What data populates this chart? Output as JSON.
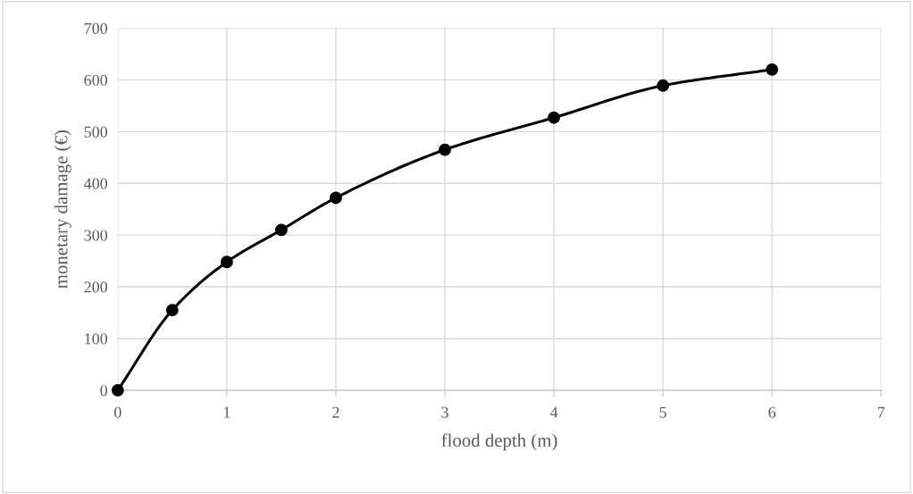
{
  "chart_data": {
    "type": "line",
    "xlabel": "flood depth (m)",
    "ylabel": "monetary damage (€)",
    "x": [
      0,
      0.5,
      1,
      1.5,
      2,
      3,
      4,
      5,
      6
    ],
    "series": [
      {
        "color": "#000000",
        "values": [
          0,
          155,
          248,
          310,
          372,
          465,
          527,
          589,
          620
        ]
      }
    ],
    "xlim": [
      0,
      7
    ],
    "xticks": [
      0,
      1,
      2,
      3,
      4,
      5,
      6,
      7
    ],
    "ylim": [
      0,
      700
    ],
    "yticks": [
      0,
      100,
      200,
      300,
      400,
      500,
      600,
      700
    ],
    "grid": true,
    "marker": "circle",
    "line_style": "solid",
    "legend": false
  }
}
